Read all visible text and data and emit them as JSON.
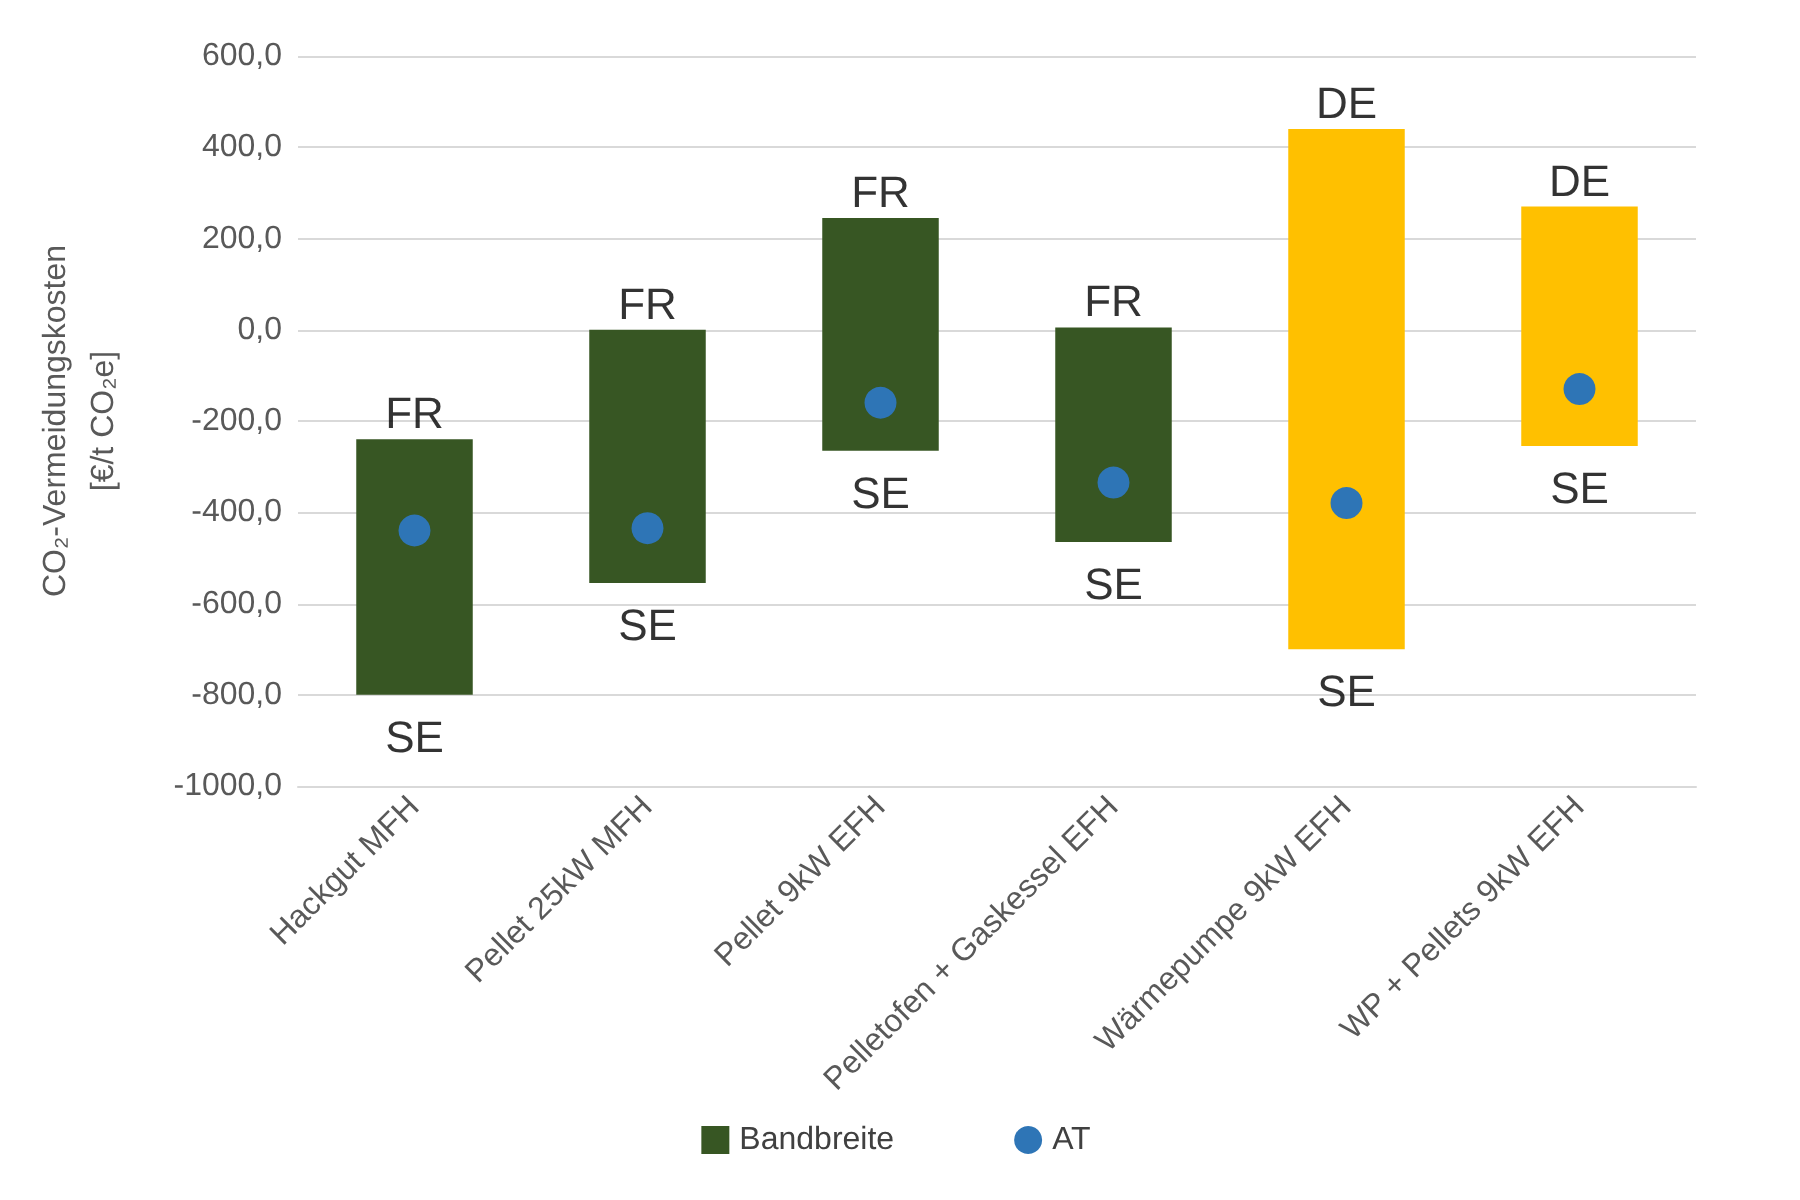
{
  "chart_data": {
    "type": "bar",
    "ylabel": "CO₂-Vermeidungskosten\n[€/t CO₂e]",
    "categories": [
      "Hackgut MFH",
      "Pellet 25kW MFH",
      "Pellet 9kW EFH",
      "Pelletofen + Gaskessel EFH",
      "Wärmepumpe 9kW EFH",
      "WP + Pellets 9kW EFH"
    ],
    "series": [
      {
        "name": "Bandbreite",
        "color": "#375623",
        "colors": [
          "#375623",
          "#375623",
          "#375623",
          "#375623",
          "#ffc000",
          "#ffc000"
        ],
        "base": [
          -800,
          -555,
          -265,
          -465,
          -700,
          -255
        ],
        "values": [
          560,
          555,
          510,
          470,
          1140,
          525
        ]
      },
      {
        "name": "AT",
        "type": "scatter",
        "color": "#2e75b6",
        "values": [
          -440,
          -435,
          -160,
          -335,
          -380,
          -130
        ]
      }
    ],
    "ylim": [
      -1000,
      600
    ],
    "yticks": [
      {
        "value": -1000,
        "label": "-1000,0"
      },
      {
        "value": -800,
        "label": "-800,0"
      },
      {
        "value": -600,
        "label": "-600,0"
      },
      {
        "value": -400,
        "label": "-400,0"
      },
      {
        "value": -200,
        "label": "-200,0"
      },
      {
        "value": 0,
        "label": "0,0"
      },
      {
        "value": 200,
        "label": "200,0"
      },
      {
        "value": 400,
        "label": "400,0"
      },
      {
        "value": 600,
        "label": "600,0"
      }
    ],
    "grid": "y",
    "legend": "bottom",
    "marker": "circle",
    "annotations": [
      {
        "text": "FR",
        "x": "Hackgut MFH",
        "y": -240
      },
      {
        "text": "SE",
        "x": "Hackgut MFH",
        "y": -800
      },
      {
        "text": "FR",
        "x": "Pellet 25kW MFH",
        "y": 0
      },
      {
        "text": "SE",
        "x": "Pellet 25kW MFH",
        "y": -555
      },
      {
        "text": "FR",
        "x": "Pellet 9kW EFH",
        "y": 245
      },
      {
        "text": "SE",
        "x": "Pellet 9kW EFH",
        "y": -265
      },
      {
        "text": "FR",
        "x": "Pelletofen + Gaskessel EFH",
        "y": 5
      },
      {
        "text": "SE",
        "x": "Pelletofen + Gaskessel EFH",
        "y": -465
      },
      {
        "text": "DE",
        "x": "Wärmepumpe 9kW EFH",
        "y": 440
      },
      {
        "text": "SE",
        "x": "Wärmepumpe 9kW EFH",
        "y": -700
      },
      {
        "text": "DE",
        "x": "WP + Pellets 9kW EFH",
        "y": 270
      },
      {
        "text": "SE",
        "x": "WP + Pellets 9kW EFH",
        "y": -255
      }
    ]
  }
}
